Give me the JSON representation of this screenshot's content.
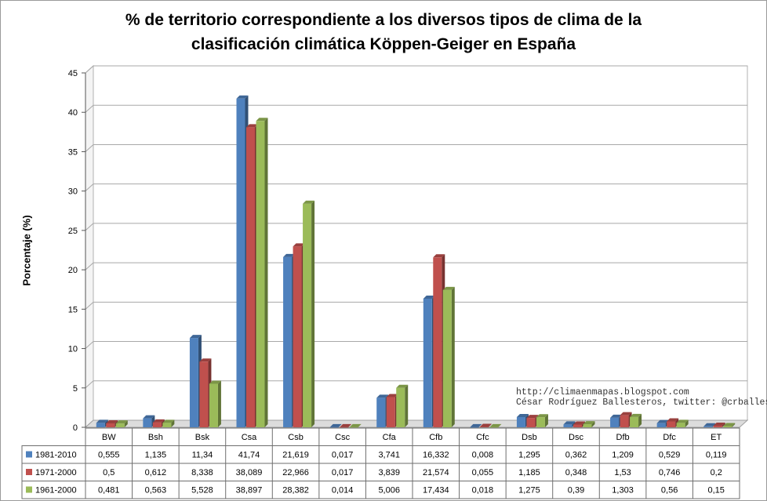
{
  "chart_data": {
    "type": "bar",
    "title_line1": "% de territorio correspondiente a los diversos tipos de clima de la",
    "title_line2": "clasificación climática Köppen-Geiger en España",
    "ylabel": "Porcentaje (%)",
    "ylim": [
      0,
      45
    ],
    "yticks": [
      0,
      5,
      10,
      15,
      20,
      25,
      30,
      35,
      40,
      45
    ],
    "categories": [
      "BW",
      "Bsh",
      "Bsk",
      "Csa",
      "Csb",
      "Csc",
      "Cfa",
      "Cfb",
      "Cfc",
      "Dsb",
      "Dsc",
      "Dfb",
      "Dfc",
      "ET"
    ],
    "series": [
      {
        "name": "1981-2010",
        "color": "#4f81bd",
        "values": [
          0.555,
          1.135,
          11.34,
          41.74,
          21.619,
          0.017,
          3.741,
          16.332,
          0.008,
          1.295,
          0.362,
          1.209,
          0.529,
          0.119
        ],
        "labels": [
          "0,555",
          "1,135",
          "11,34",
          "41,74",
          "21,619",
          "0,017",
          "3,741",
          "16,332",
          "0,008",
          "1,295",
          "0,362",
          "1,209",
          "0,529",
          "0,119"
        ]
      },
      {
        "name": "1971-2000",
        "color": "#c0504d",
        "values": [
          0.5,
          0.612,
          8.338,
          38.089,
          22.966,
          0.017,
          3.839,
          21.574,
          0.055,
          1.185,
          0.348,
          1.53,
          0.746,
          0.2
        ],
        "labels": [
          "0,5",
          "0,612",
          "8,338",
          "38,089",
          "22,966",
          "0,017",
          "3,839",
          "21,574",
          "0,055",
          "1,185",
          "0,348",
          "1,53",
          "0,746",
          "0,2"
        ]
      },
      {
        "name": "1961-2000",
        "color": "#9bbb59",
        "values": [
          0.481,
          0.563,
          5.528,
          38.897,
          28.382,
          0.014,
          5.006,
          17.434,
          0.018,
          1.275,
          0.39,
          1.303,
          0.56,
          0.15
        ],
        "labels": [
          "0,481",
          "0,563",
          "5,528",
          "38,897",
          "28,382",
          "0,014",
          "5,006",
          "17,434",
          "0,018",
          "1,275",
          "0,39",
          "1,303",
          "0,56",
          "0,15"
        ]
      }
    ],
    "annotation_line1": "http://climaenmapas.blogspot.com",
    "annotation_line2": "César Rodríguez Ballesteros, twitter: @crballesteros"
  }
}
